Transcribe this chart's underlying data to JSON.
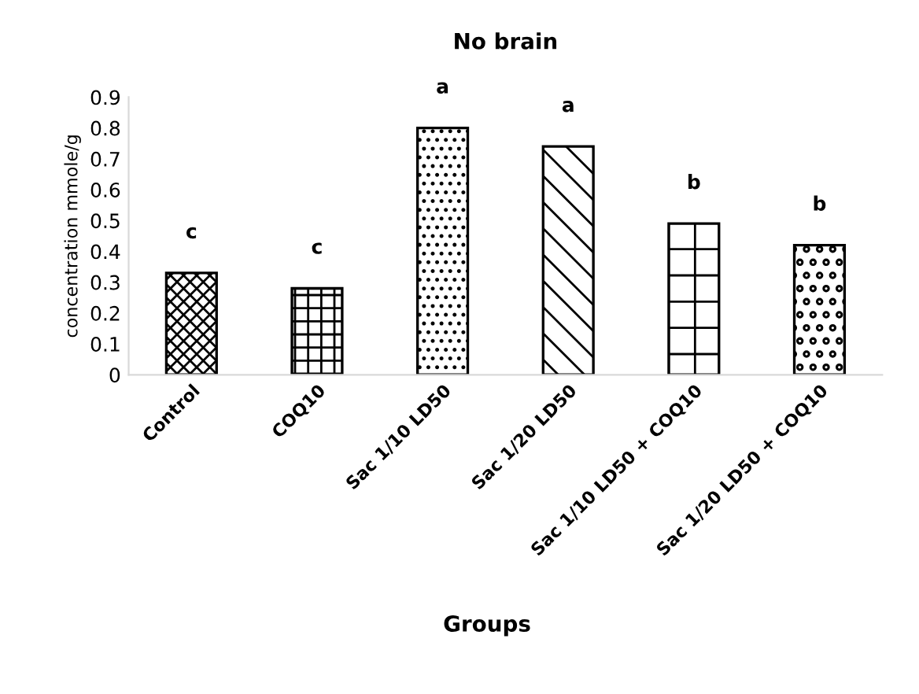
{
  "chart_data": {
    "type": "bar",
    "title": "No brain",
    "xlabel": "Groups",
    "ylabel": "concentration mmole/g",
    "categories": [
      "Control",
      "COQ10",
      "Sac 1/10 LD50",
      "Sac 1/20 LD50",
      "Sac 1/10 LD50 + COQ10",
      "Sac 1/20 LD50 + COQ10"
    ],
    "values": [
      0.33,
      0.28,
      0.8,
      0.74,
      0.49,
      0.42
    ],
    "ylim": [
      0,
      0.9
    ],
    "yticks": [
      {
        "value": 0,
        "label": "0"
      },
      0.1,
      0.2,
      0.3,
      0.4,
      0.5,
      0.6,
      0.7,
      0.8,
      0.9
    ],
    "grid": false,
    "legend": false,
    "annotations": [
      {
        "text": "c",
        "x": "Control",
        "y": 0.33
      },
      {
        "text": "c",
        "x": "COQ10",
        "y": 0.28
      },
      {
        "text": "a",
        "x": "Sac 1/10 LD50",
        "y": 0.8
      },
      {
        "text": "a",
        "x": "Sac 1/20 LD50",
        "y": 0.74
      },
      {
        "text": "b",
        "x": "Sac 1/10 LD50 + COQ10",
        "y": 0.49
      },
      {
        "text": "b",
        "x": "Sac 1/20 LD50 + COQ10",
        "y": 0.42
      }
    ]
  }
}
